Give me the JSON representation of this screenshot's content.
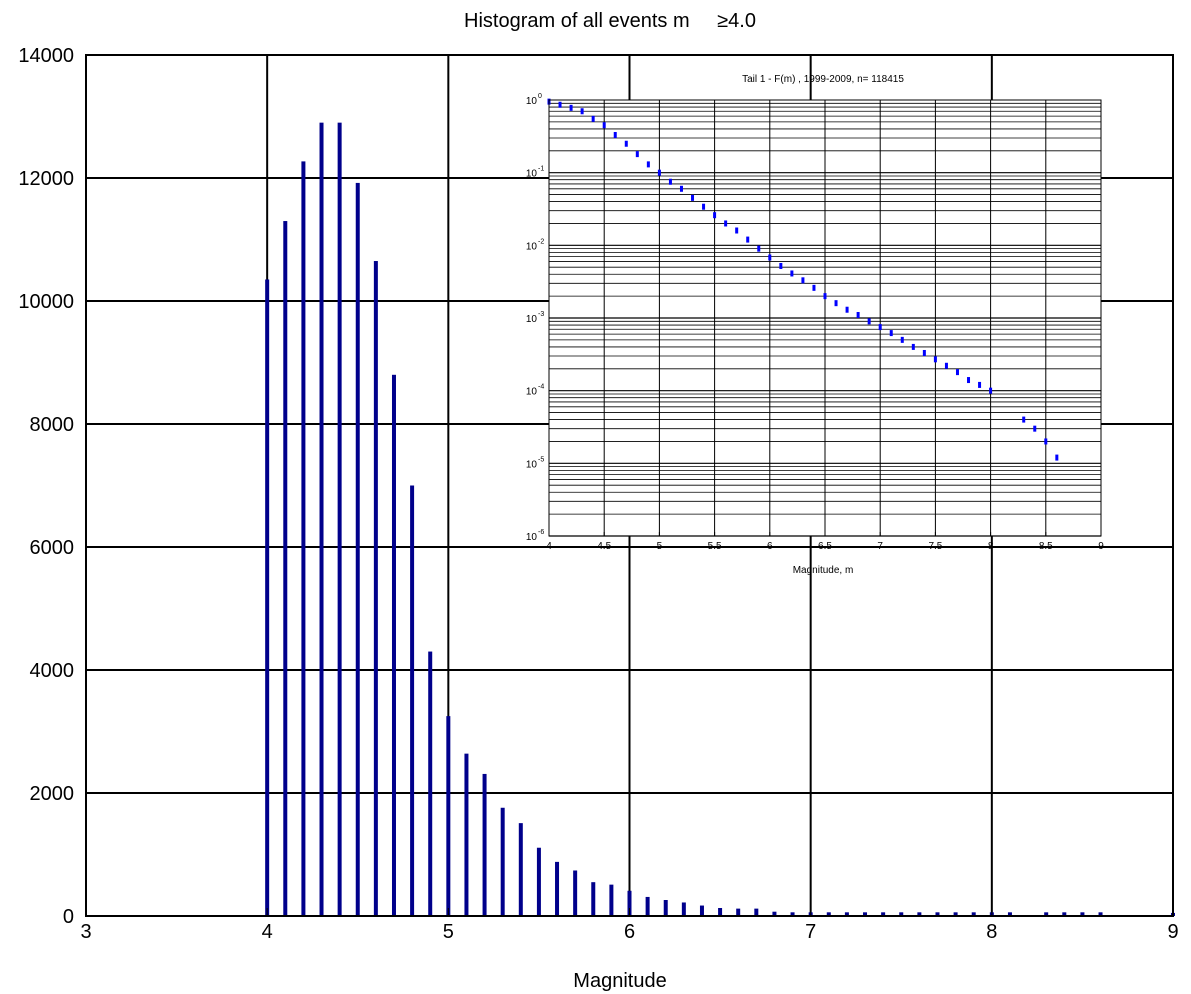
{
  "chart_data": [
    {
      "type": "bar",
      "title": "Histogram of all events m",
      "title_condition": "≥4.0",
      "xlabel": "Magnitude",
      "ylabel": "",
      "xlim": [
        3,
        9
      ],
      "ylim": [
        0,
        14000
      ],
      "xticks": [
        "3",
        "4",
        "5",
        "6",
        "7",
        "8",
        "9"
      ],
      "yticks": [
        "0",
        "2000",
        "4000",
        "6000",
        "8000",
        "10000",
        "12000",
        "14000"
      ],
      "grid": true,
      "bar_color": "#00008b",
      "x": [
        4.0,
        4.1,
        4.2,
        4.3,
        4.4,
        4.5,
        4.6,
        4.7,
        4.8,
        4.9,
        5.0,
        5.1,
        5.2,
        5.3,
        5.4,
        5.5,
        5.6,
        5.7,
        5.8,
        5.9,
        6.0,
        6.1,
        6.2,
        6.3,
        6.4,
        6.5,
        6.6,
        6.7,
        6.8,
        6.9,
        7.0,
        7.1,
        7.2,
        7.3,
        7.4,
        7.5,
        7.6,
        7.7,
        7.8,
        7.9,
        8.0,
        8.1,
        8.3,
        8.4,
        8.5,
        8.6,
        9.0
      ],
      "values": [
        10350,
        11300,
        12270,
        12900,
        12900,
        11920,
        10650,
        8800,
        7000,
        4300,
        3250,
        2640,
        2310,
        1760,
        1510,
        1110,
        880,
        740,
        550,
        510,
        410,
        310,
        260,
        220,
        170,
        130,
        120,
        120,
        70,
        60,
        60,
        60,
        60,
        60,
        60,
        60,
        60,
        60,
        60,
        60,
        60,
        60,
        60,
        60,
        60,
        60,
        50
      ]
    },
    {
      "type": "scatter",
      "title": "Tail 1 - F(m) , 1999-2009, n= 118415",
      "xlabel": "Magnitude, m",
      "ylabel": "",
      "xlim": [
        4,
        9
      ],
      "ylim": [
        1e-06,
        1
      ],
      "yscale": "log",
      "xticks": [
        "4",
        "4.5",
        "5",
        "5.5",
        "6",
        "6.5",
        "7",
        "7.5",
        "8",
        "8.5",
        "9"
      ],
      "yticks": [
        {
          "base": "10",
          "exp": "0"
        },
        {
          "base": "10",
          "exp": "-1"
        },
        {
          "base": "10",
          "exp": "-2"
        },
        {
          "base": "10",
          "exp": "-3"
        },
        {
          "base": "10",
          "exp": "-4"
        },
        {
          "base": "10",
          "exp": "-5"
        },
        {
          "base": "10",
          "exp": "-6"
        }
      ],
      "grid": true,
      "marker_color": "#0000ff",
      "x": [
        4.0,
        4.1,
        4.2,
        4.3,
        4.4,
        4.5,
        4.6,
        4.7,
        4.8,
        4.9,
        5.0,
        5.1,
        5.2,
        5.3,
        5.4,
        5.5,
        5.6,
        5.7,
        5.8,
        5.9,
        6.0,
        6.1,
        6.2,
        6.3,
        6.4,
        6.5,
        6.6,
        6.7,
        6.8,
        6.9,
        7.0,
        7.1,
        7.2,
        7.3,
        7.4,
        7.5,
        7.6,
        7.7,
        7.8,
        7.9,
        8.0,
        8.3,
        8.4,
        8.5,
        8.6
      ],
      "y": [
        0.95,
        0.86,
        0.78,
        0.7,
        0.55,
        0.45,
        0.33,
        0.25,
        0.18,
        0.13,
        0.1,
        0.075,
        0.06,
        0.045,
        0.034,
        0.026,
        0.02,
        0.016,
        0.012,
        0.009,
        0.0068,
        0.0052,
        0.0041,
        0.0033,
        0.0026,
        0.002,
        0.0016,
        0.0013,
        0.0011,
        0.0009,
        0.00075,
        0.00062,
        0.0005,
        0.0004,
        0.00033,
        0.00027,
        0.00022,
        0.00018,
        0.00014,
        0.00012,
        0.0001,
        4e-05,
        3e-05,
        2e-05,
        1.2e-05
      ]
    }
  ]
}
